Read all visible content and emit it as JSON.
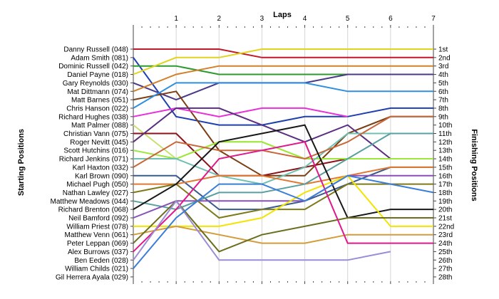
{
  "chart_data": {
    "type": "line",
    "title": "Laps",
    "xlabel": "Laps",
    "ylabel_left": "Starting Positions",
    "ylabel_right": "Finishing Positions",
    "x_ticks": [
      "1",
      "2",
      "3",
      "4",
      "5",
      "6",
      "7"
    ],
    "xlim": [
      0,
      7
    ],
    "ylim": [
      1,
      28
    ],
    "grid": true,
    "starting_labels": [
      "Danny Russell (048)",
      "Adam Smith (081)",
      "Dominic Russell (042)",
      "Daniel Payne (018)",
      "Gary Reynolds (030)",
      "Mat Dittmann (074)",
      "Matt Barnes (051)",
      "Chris Hanson (022)",
      "Richard Hughes (038)",
      "Matt Palmer (088)",
      "Christian Vann (075)",
      "Roger Nevitt (045)",
      "Scott Hutchins (016)",
      "Richard Jenkins (071)",
      "Karl Haxton (032)",
      "Karl Brown (090)",
      "Michael Pugh (050)",
      "Nathan Lawley (027)",
      "Matthew Meadows (044)",
      "Richard Brenton (068)",
      "Neil Bamford (092)",
      "William Priest (078)",
      "Matthew Venn (061)",
      "Peter Leppan (069)",
      "Alex Burrows (037)",
      "Ben Eeden (028)",
      "William Childs (021)",
      "Gil Herrera Ayala (029)"
    ],
    "finishing_labels": [
      "1st",
      "2nd",
      "3rd",
      "4th",
      "5th",
      "6th",
      "7th",
      "8th",
      "9th",
      "10th",
      "11th",
      "12th",
      "13th",
      "14th",
      "15th",
      "16th",
      "17th",
      "18th",
      "19th",
      "20th",
      "21st",
      "22nd",
      "23rd",
      "24th",
      "25th",
      "26th",
      "27th",
      "28th"
    ],
    "series": [
      {
        "color": "#c0182a",
        "values": [
          1,
          1,
          1,
          2,
          2,
          2,
          2,
          2
        ]
      },
      {
        "color": "#1f3fb0",
        "values": [
          2,
          9,
          10,
          10,
          9,
          9,
          8,
          8
        ]
      },
      {
        "color": "#2e9a2e",
        "values": [
          3,
          3,
          4,
          4,
          4,
          4,
          4,
          4
        ]
      },
      {
        "color": "#e0d41c",
        "values": [
          4,
          2,
          2,
          1,
          1,
          1,
          1,
          1
        ]
      },
      {
        "color": "#4a3a86",
        "values": [
          5,
          7,
          5,
          5,
          5,
          4,
          4,
          4
        ]
      },
      {
        "color": "#d2802a",
        "values": [
          6,
          4,
          3,
          3,
          3,
          3,
          3,
          3
        ]
      },
      {
        "color": "#7a3e12",
        "values": [
          7,
          6,
          13,
          16,
          16,
          11,
          9,
          9
        ]
      },
      {
        "color": "#2f8fe0",
        "values": [
          8,
          5,
          5,
          5,
          5,
          6,
          6,
          6
        ]
      },
      {
        "color": "#e830d8",
        "values": [
          9,
          8,
          9,
          8,
          8,
          9,
          null,
          null
        ]
      },
      {
        "color": "#c8e070",
        "values": [
          10,
          14,
          12,
          12,
          14,
          14,
          14,
          14
        ]
      },
      {
        "color": "#8c1218",
        "values": [
          11,
          11,
          16,
          16,
          15,
          14,
          14,
          14
        ]
      },
      {
        "color": "#5a2e80",
        "values": [
          12,
          8,
          8,
          10,
          12,
          10,
          14,
          14
        ]
      },
      {
        "color": "#9be838",
        "values": [
          13,
          14,
          12,
          12,
          14,
          14,
          14,
          14
        ]
      },
      {
        "color": "#6ec0b2",
        "values": [
          14,
          14,
          16,
          17,
          15,
          11,
          11,
          11
        ]
      },
      {
        "color": "#c8683a",
        "values": [
          15,
          12,
          13,
          13,
          14,
          12,
          9,
          9
        ]
      },
      {
        "color": "#3a5a8c",
        "values": [
          16,
          16,
          20,
          20,
          19,
          17,
          15,
          15
        ]
      },
      {
        "color": "#e07830",
        "values": [
          17,
          17,
          16,
          16,
          17,
          16,
          15,
          15
        ]
      },
      {
        "color": "#7e7a1a",
        "values": [
          18,
          17,
          21,
          20,
          20,
          17,
          17,
          17
        ]
      },
      {
        "color": "#5aa0a0",
        "values": [
          19,
          20,
          18,
          18,
          17,
          14,
          11,
          11
        ]
      },
      {
        "color": "#181818",
        "values": [
          20,
          17,
          12,
          11,
          10,
          21,
          20,
          20
        ]
      },
      {
        "color": "#8850b8",
        "values": [
          21,
          19,
          19,
          19,
          19,
          16,
          16,
          16
        ]
      },
      {
        "color": "#f2e400",
        "values": [
          22,
          22,
          22,
          21,
          18,
          16,
          22,
          22
        ]
      },
      {
        "color": "#d29c3a",
        "values": [
          23,
          22,
          23,
          24,
          24,
          23,
          23,
          23
        ]
      },
      {
        "color": "#6b6e1c",
        "values": [
          24,
          19,
          25,
          23,
          22,
          21,
          21,
          21
        ]
      },
      {
        "color": "#e0188c",
        "values": [
          25,
          20,
          14,
          13,
          12,
          24,
          24,
          24
        ]
      },
      {
        "color": "#9b8cd6",
        "values": [
          26,
          19,
          26,
          26,
          26,
          26,
          25,
          null
        ]
      },
      {
        "color": "#3a7ed8",
        "values": [
          27,
          21,
          17,
          17,
          19,
          16,
          17,
          18
        ]
      },
      {
        "color": "#808080",
        "values": [
          28,
          null,
          null,
          null,
          null,
          null,
          null,
          null
        ]
      }
    ]
  }
}
